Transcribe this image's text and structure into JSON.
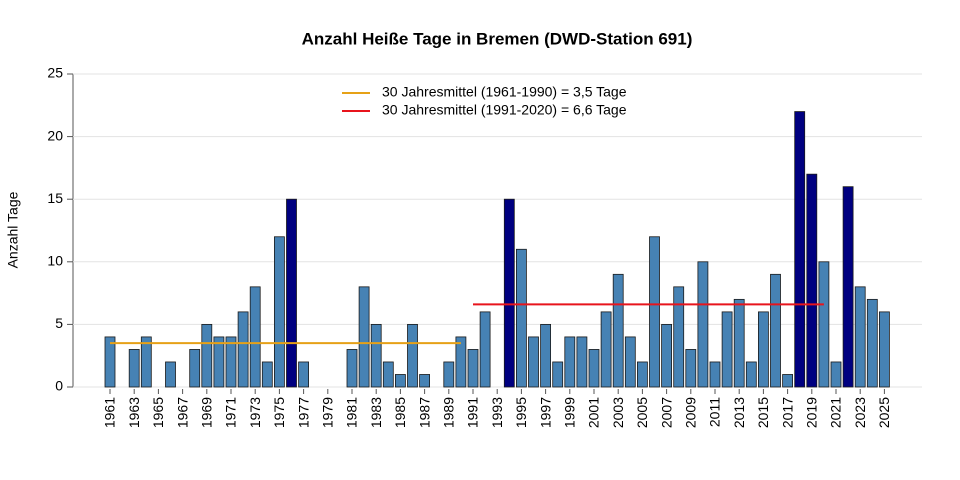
{
  "chart_data": {
    "type": "bar",
    "title": "Anzahl Heiße Tage in Bremen (DWD-Station 691)",
    "y_label": "Anzahl Tage",
    "categories": [
      "1961",
      null,
      "1963",
      null,
      "1965",
      null,
      "1967",
      null,
      "1969",
      null,
      "1971",
      null,
      "1973",
      null,
      "1975",
      null,
      "1977",
      null,
      "1979",
      null,
      "1981",
      null,
      "1983",
      null,
      "1985",
      null,
      "1987",
      null,
      "1989",
      null,
      "1991",
      null,
      "1993",
      null,
      "1995",
      null,
      "1997",
      null,
      "1999",
      null,
      "2001",
      null,
      "2003",
      null,
      "2005",
      null,
      "2007",
      null,
      "2009",
      null,
      "2011",
      null,
      "2013",
      null,
      "2015",
      null,
      "2017",
      null,
      "2019",
      null,
      "2021",
      null,
      "2023",
      null,
      "2025"
    ],
    "values": [
      4,
      0,
      3,
      4,
      0,
      2,
      0,
      3,
      5,
      4,
      4,
      6,
      8,
      2,
      12,
      15,
      2,
      0,
      0,
      0,
      3,
      8,
      5,
      2,
      1,
      5,
      1,
      0,
      2,
      4,
      3,
      6,
      0,
      15,
      11,
      4,
      5,
      2,
      4,
      4,
      3,
      6,
      9,
      4,
      2,
      12,
      5,
      8,
      3,
      10,
      2,
      6,
      7,
      2,
      6,
      9,
      1,
      22,
      17,
      10,
      2,
      16,
      8,
      7,
      6
    ],
    "colors": [
      "#4682b4",
      "#4682b4",
      "#4682b4",
      "#4682b4",
      "#4682b4",
      "#4682b4",
      "#4682b4",
      "#4682b4",
      "#4682b4",
      "#4682b4",
      "#4682b4",
      "#4682b4",
      "#4682b4",
      "#4682b4",
      "#4682b4",
      "#000080",
      "#4682b4",
      "#4682b4",
      "#4682b4",
      "#4682b4",
      "#4682b4",
      "#4682b4",
      "#4682b4",
      "#4682b4",
      "#4682b4",
      "#4682b4",
      "#4682b4",
      "#4682b4",
      "#4682b4",
      "#4682b4",
      "#4682b4",
      "#4682b4",
      "#4682b4",
      "#000080",
      "#4682b4",
      "#4682b4",
      "#4682b4",
      "#4682b4",
      "#4682b4",
      "#4682b4",
      "#4682b4",
      "#4682b4",
      "#4682b4",
      "#4682b4",
      "#4682b4",
      "#4682b4",
      "#4682b4",
      "#4682b4",
      "#4682b4",
      "#4682b4",
      "#4682b4",
      "#4682b4",
      "#4682b4",
      "#4682b4",
      "#4682b4",
      "#4682b4",
      "#4682b4",
      "#000080",
      "#000080",
      "#4682b4",
      "#4682b4",
      "#000080",
      "#4682b4",
      "#4682b4",
      "#4682b4"
    ],
    "series": [
      {
        "name": "30 Jahresmittel (1961-1990) = 3,5 Tage",
        "color": "#e6a117",
        "values": [
          3.5,
          3.5,
          3.5,
          3.5,
          3.5,
          3.5,
          3.5,
          3.5,
          3.5,
          3.5,
          3.5,
          3.5,
          3.5,
          3.5,
          3.5,
          3.5,
          3.5,
          3.5,
          3.5,
          3.5,
          3.5,
          3.5,
          3.5,
          3.5,
          3.5,
          3.5,
          3.5,
          3.5,
          3.5,
          3.5,
          null,
          null,
          null,
          null,
          null,
          null,
          null,
          null,
          null,
          null,
          null,
          null,
          null,
          null,
          null,
          null,
          null,
          null,
          null,
          null,
          null,
          null,
          null,
          null,
          null,
          null,
          null,
          null,
          null,
          null,
          null,
          null,
          null,
          null,
          null
        ]
      },
      {
        "name": "30 Jahresmittel (1991-2020) = 6,6 Tage",
        "color": "#e8141c",
        "values": [
          null,
          null,
          null,
          null,
          null,
          null,
          null,
          null,
          null,
          null,
          null,
          null,
          null,
          null,
          null,
          null,
          null,
          null,
          null,
          null,
          null,
          null,
          null,
          null,
          null,
          null,
          null,
          null,
          null,
          null,
          6.6,
          6.6,
          6.6,
          6.6,
          6.6,
          6.6,
          6.6,
          6.6,
          6.6,
          6.6,
          6.6,
          6.6,
          6.6,
          6.6,
          6.6,
          6.6,
          6.6,
          6.6,
          6.6,
          6.6,
          6.6,
          6.6,
          6.6,
          6.6,
          6.6,
          6.6,
          6.6,
          6.6,
          6.6,
          6.6,
          null,
          null,
          null,
          null,
          null
        ]
      }
    ],
    "ylim": [
      0,
      25
    ],
    "yticks": [
      0,
      5,
      10,
      15,
      20,
      25
    ],
    "grid": true
  }
}
